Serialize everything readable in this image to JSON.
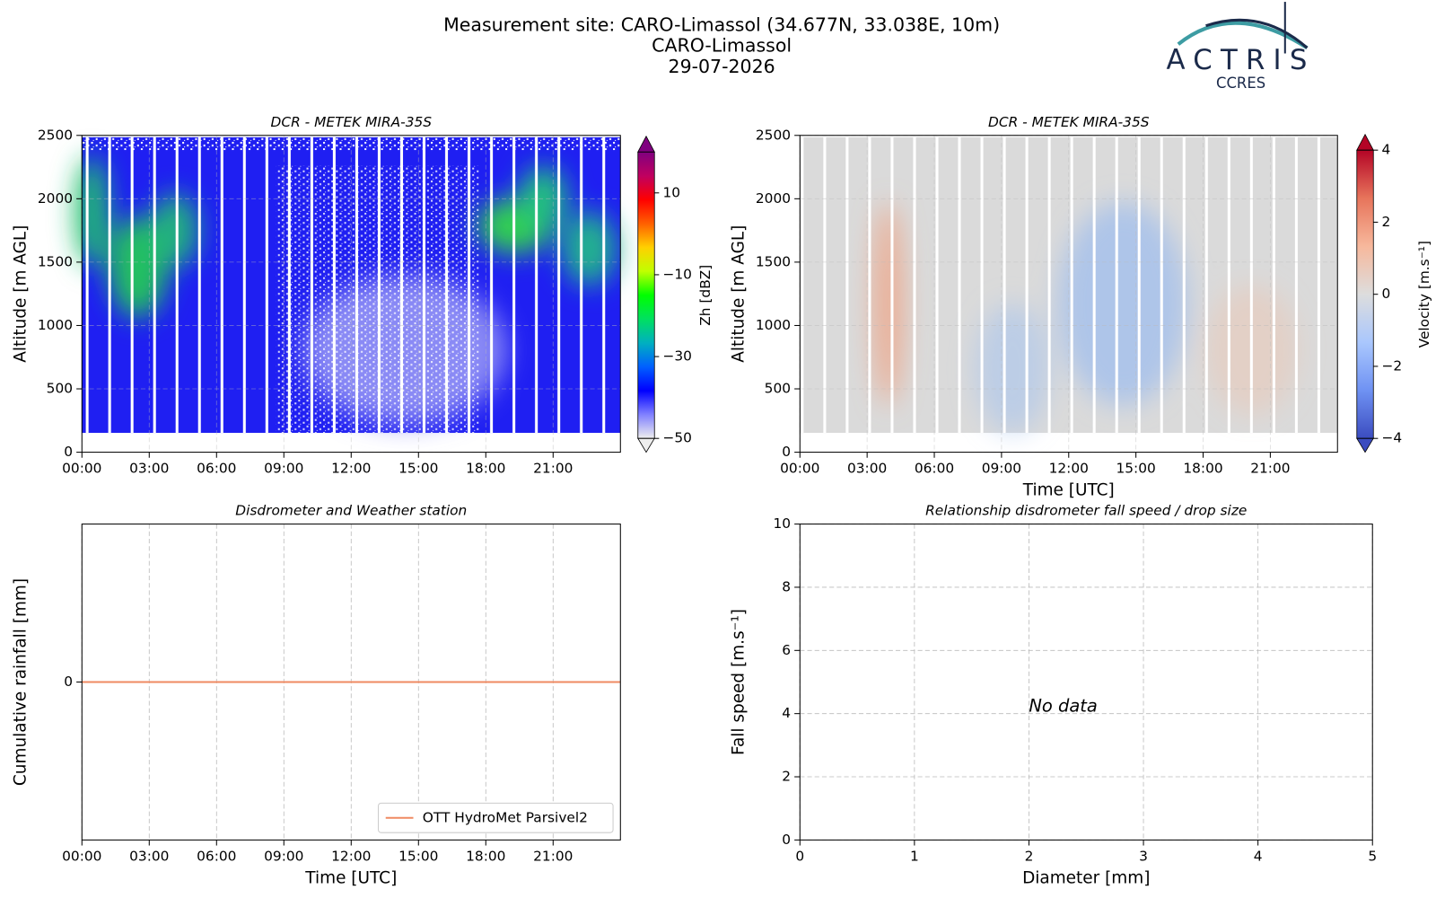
{
  "header": {
    "title": "Measurement site: CARO-Limassol (34.677N, 33.038E, 10m)",
    "site": "CARO-Limassol",
    "date": "29-07-2026"
  },
  "logo": {
    "name": "ACTRIS",
    "subtitle": "CCRES"
  },
  "chart_data": [
    {
      "type": "heatmap",
      "title": "DCR - METEK MIRA-35S",
      "ylabel": "Altitude [m AGL]",
      "xlim": [
        0,
        24
      ],
      "xticks": [
        {
          "value": 0,
          "label": "00:00"
        },
        {
          "value": 3,
          "label": "03:00"
        },
        {
          "value": 6,
          "label": "06:00"
        },
        {
          "value": 9,
          "label": "09:00"
        },
        {
          "value": 12,
          "label": "12:00"
        },
        {
          "value": 15,
          "label": "15:00"
        },
        {
          "value": 18,
          "label": "18:00"
        },
        {
          "value": 21,
          "label": "21:00"
        }
      ],
      "ylim": [
        0,
        2500
      ],
      "yticks": [
        0,
        500,
        1000,
        1500,
        2000,
        2500
      ],
      "grid": true,
      "colorbar": {
        "label": "Zh [dBZ]",
        "lim": [
          -50,
          20
        ],
        "ticks": [
          {
            "value": -50,
            "label": "−50"
          },
          {
            "value": -30,
            "label": "−30"
          },
          {
            "value": -10,
            "label": "−10"
          },
          10
        ],
        "colors": [
          "#eeeeee",
          "#8080ff",
          "#0000ff",
          "#0060ff",
          "#00b0c0",
          "#00e060",
          "#00ff00",
          "#c0ff00",
          "#ffd000",
          "#ff6000",
          "#ff0000",
          "#c00060",
          "#800080"
        ]
      }
    },
    {
      "type": "heatmap",
      "title": "DCR - METEK MIRA-35S",
      "ylabel": "Altitude [m AGL]",
      "xlabel": "Time [UTC]",
      "xlim": [
        0,
        24
      ],
      "xticks": [
        {
          "value": 0,
          "label": "00:00"
        },
        {
          "value": 3,
          "label": "03:00"
        },
        {
          "value": 6,
          "label": "06:00"
        },
        {
          "value": 9,
          "label": "09:00"
        },
        {
          "value": 12,
          "label": "12:00"
        },
        {
          "value": 15,
          "label": "15:00"
        },
        {
          "value": 18,
          "label": "18:00"
        },
        {
          "value": 21,
          "label": "21:00"
        }
      ],
      "ylim": [
        0,
        2500
      ],
      "yticks": [
        0,
        500,
        1000,
        1500,
        2000,
        2500
      ],
      "grid": true,
      "colorbar": {
        "label": "Velocity [m.s⁻¹]",
        "lim": [
          -4,
          4
        ],
        "ticks": [
          {
            "value": -4,
            "label": "−4"
          },
          {
            "value": -2,
            "label": "−2"
          },
          0,
          2,
          4
        ],
        "colors": [
          "#3b4cc0",
          "#6f92f3",
          "#aac7fd",
          "#dddddd",
          "#f7b89c",
          "#e7745b",
          "#b40426"
        ]
      }
    },
    {
      "type": "line",
      "title": "Disdrometer and Weather station",
      "ylabel": "Cumulative rainfall [mm]",
      "xlabel": "Time [UTC]",
      "xlim": [
        0,
        24
      ],
      "xticks": [
        {
          "value": 0,
          "label": "00:00"
        },
        {
          "value": 3,
          "label": "03:00"
        },
        {
          "value": 6,
          "label": "06:00"
        },
        {
          "value": 9,
          "label": "09:00"
        },
        {
          "value": 12,
          "label": "12:00"
        },
        {
          "value": 15,
          "label": "15:00"
        },
        {
          "value": 18,
          "label": "18:00"
        },
        {
          "value": 21,
          "label": "21:00"
        }
      ],
      "ylim": [
        -1,
        1
      ],
      "yticks": [
        0
      ],
      "grid": true,
      "legend": "lower right",
      "x": [
        0,
        24
      ],
      "series": [
        {
          "name": "OTT HydroMet Parsivel2",
          "color": "#ef8a62",
          "values": [
            0,
            0
          ]
        }
      ]
    },
    {
      "type": "scatter",
      "title": "Relationship disdrometer fall speed / drop size",
      "ylabel": "Fall speed [m.s⁻¹]",
      "xlabel": "Diameter [mm]",
      "xlim": [
        0,
        5
      ],
      "xticks": [
        0,
        1,
        2,
        3,
        4,
        5
      ],
      "ylim": [
        0,
        10
      ],
      "yticks": [
        0,
        2,
        4,
        6,
        8,
        10
      ],
      "grid": true,
      "x": [],
      "values": [],
      "annotation": "No data"
    }
  ]
}
